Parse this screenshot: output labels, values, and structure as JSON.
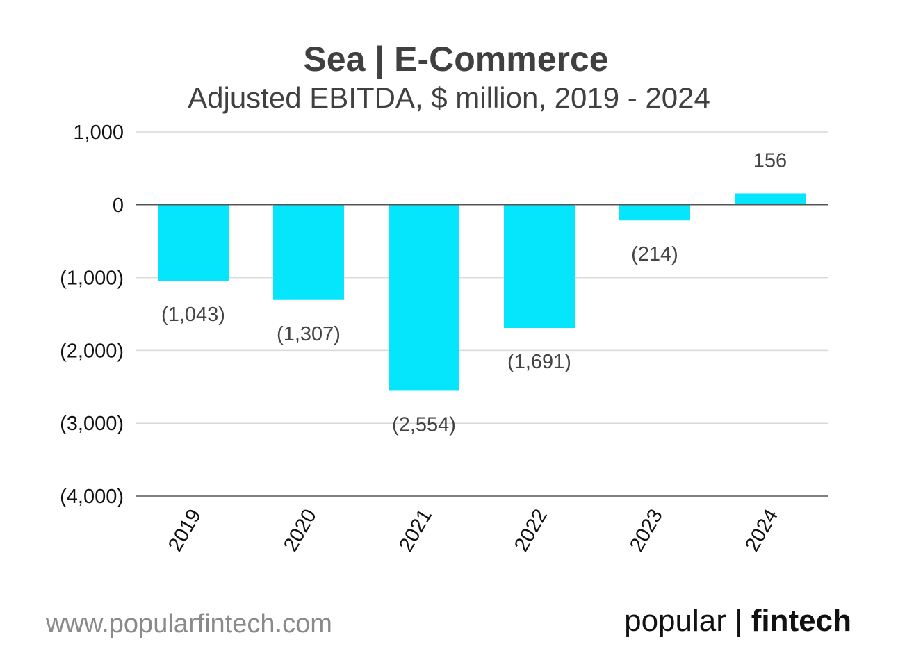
{
  "chart_data": {
    "type": "bar",
    "title": "Sea | E-Commerce",
    "subtitle": "Adjusted EBITDA, $ million, 2019 - 2024",
    "categories": [
      "2019",
      "2020",
      "2021",
      "2022",
      "2023",
      "2024"
    ],
    "values": [
      -1043,
      -1307,
      -2554,
      -1691,
      -214,
      156
    ],
    "data_labels": [
      "(1,043)",
      "(1,307)",
      "(2,554)",
      "(1,691)",
      "(214)",
      "156"
    ],
    "ylim": [
      -4000,
      1000
    ],
    "yticks": [
      1000,
      0,
      -1000,
      -2000,
      -3000,
      -4000
    ],
    "ytick_labels": [
      "1,000",
      "0",
      "(1,000)",
      "(2,000)",
      "(3,000)",
      "(4,000)"
    ],
    "xlabel": "",
    "ylabel": "",
    "grid": true,
    "legend": "none",
    "bar_color": "#05E6FC"
  },
  "footer": {
    "website": "www.popularfintech.com",
    "brand_left": "popular |",
    "brand_right": "fintech"
  }
}
